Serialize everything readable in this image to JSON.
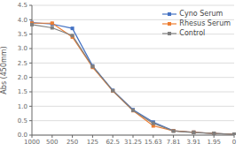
{
  "chart_data": {
    "type": "line",
    "categories": [
      "1000",
      "500",
      "250",
      "125",
      "62.5",
      "31.25",
      "15.63",
      "7.81",
      "3.91",
      "1.95",
      "0"
    ],
    "series": [
      {
        "name": "Cyno Serum",
        "color": "#4472C4",
        "marker": "square",
        "values": [
          3.9,
          3.85,
          3.7,
          2.4,
          1.55,
          0.88,
          0.45,
          0.15,
          0.1,
          0.06,
          0.03
        ]
      },
      {
        "name": "Rhesus Serum",
        "color": "#ED7D31",
        "marker": "square",
        "values": [
          3.88,
          3.88,
          3.4,
          2.35,
          1.53,
          0.85,
          0.32,
          0.15,
          0.1,
          0.06,
          0.03
        ]
      },
      {
        "name": "Control",
        "color": "#7f7f7f",
        "marker": "square",
        "values": [
          3.83,
          3.72,
          3.45,
          2.38,
          1.54,
          0.86,
          0.41,
          0.14,
          0.09,
          0.06,
          0.03
        ]
      }
    ],
    "ylabel": "Abs (450mm)",
    "ylim": [
      0,
      4.5
    ],
    "yticks": [
      {
        "value": 0,
        "label": "0.0"
      },
      0.5,
      {
        "value": 1,
        "label": "1.0"
      },
      1.5,
      {
        "value": 2,
        "label": "2.0"
      },
      2.5,
      {
        "value": 3,
        "label": "3.0"
      },
      3.5,
      {
        "value": 4,
        "label": "4.0"
      },
      4.5
    ],
    "grid": true,
    "legend": "upper right"
  }
}
